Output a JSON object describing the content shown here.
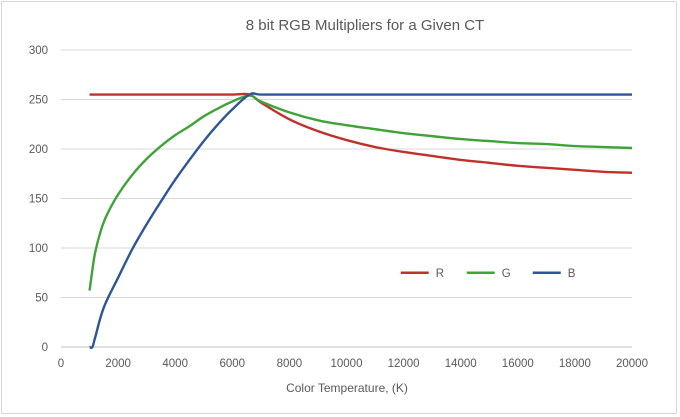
{
  "chart_data": {
    "type": "line",
    "title": "8 bit RGB Multipliers for a Given CT",
    "xlabel": "Color Temperature, (K)",
    "ylabel": "",
    "xlim": [
      0,
      20000
    ],
    "ylim": [
      0,
      300
    ],
    "x_ticks": [
      0,
      2000,
      4000,
      6000,
      8000,
      10000,
      12000,
      14000,
      16000,
      18000,
      20000
    ],
    "y_ticks": [
      0,
      50,
      100,
      150,
      200,
      250,
      300
    ],
    "grid": "horizontal",
    "legend_position": "inside-right",
    "series": [
      {
        "name": "R",
        "color": "#C0312B",
        "x": [
          1000,
          2000,
          3000,
          4000,
          5000,
          6000,
          6600,
          7000,
          8000,
          9000,
          10000,
          11000,
          12000,
          13000,
          14000,
          15000,
          16000,
          17000,
          18000,
          19000,
          20000
        ],
        "values": [
          255,
          255,
          255,
          255,
          255,
          255,
          255,
          247,
          230,
          218,
          209,
          202,
          197,
          193,
          189,
          186,
          183,
          181,
          179,
          177,
          176
        ]
      },
      {
        "name": "G",
        "color": "#3FA33A",
        "x": [
          1000,
          1100,
          1200,
          1400,
          1600,
          2000,
          2500,
          3000,
          3500,
          4000,
          4500,
          5000,
          5500,
          6000,
          6600,
          7000,
          8000,
          9000,
          10000,
          11000,
          12000,
          13000,
          14000,
          15000,
          16000,
          17000,
          18000,
          19000,
          20000
        ],
        "values": [
          57,
          78,
          96,
          118,
          133,
          154,
          174,
          190,
          203,
          214,
          223,
          233,
          241,
          248,
          254,
          248,
          237,
          229,
          224,
          220,
          216,
          213,
          210,
          208,
          206,
          205,
          203,
          202,
          201
        ]
      },
      {
        "name": "B",
        "color": "#2E5597",
        "x": [
          1000,
          1100,
          1200,
          1500,
          2000,
          2500,
          3000,
          3500,
          4000,
          4500,
          5000,
          5500,
          6000,
          6600,
          7000,
          8000,
          10000,
          12000,
          14000,
          16000,
          18000,
          20000
        ],
        "values": [
          0,
          0,
          10,
          40,
          70,
          99,
          124,
          147,
          169,
          189,
          208,
          225,
          240,
          255,
          255,
          255,
          255,
          255,
          255,
          255,
          255,
          255
        ]
      }
    ]
  }
}
